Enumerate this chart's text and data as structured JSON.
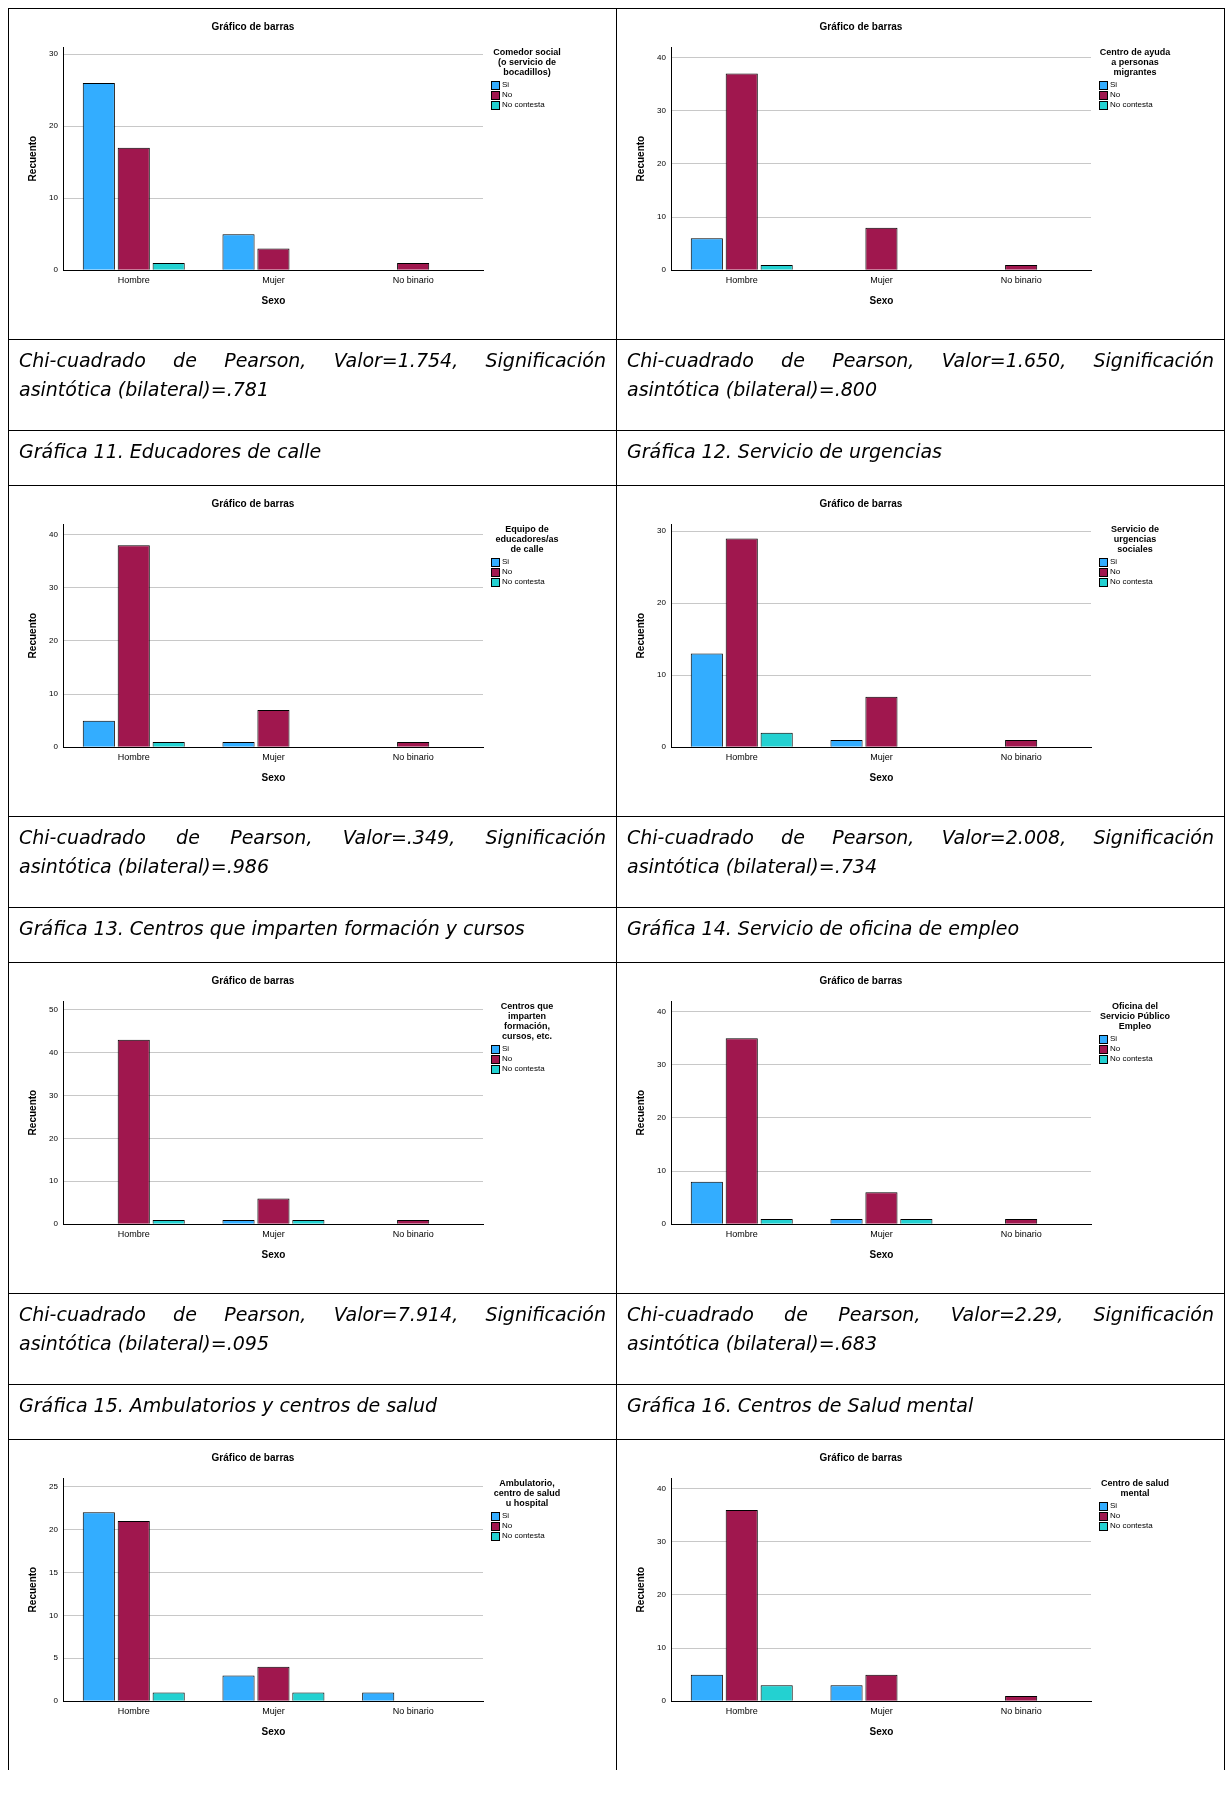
{
  "chart_data": [
    {
      "type": "bar",
      "title": "Gráfico de barras",
      "xlabel": "Sexo",
      "ylabel": "Recuento",
      "legend_title": "Comedor social (o servicio de bocadillos)",
      "legend": "top right",
      "grid": "y",
      "categories": [
        "Hombre",
        "Mujer",
        "No binario"
      ],
      "ylim": [
        0,
        31
      ],
      "yticks": [
        0,
        10,
        20,
        30
      ],
      "series": [
        {
          "name": "Si",
          "color": "#33adff",
          "values": [
            26,
            5,
            null
          ]
        },
        {
          "name": "No",
          "color": "#a0174e",
          "values": [
            17,
            3,
            1
          ]
        },
        {
          "name": "No contesta",
          "color": "#23d1d1",
          "values": [
            1,
            null,
            null
          ]
        }
      ],
      "annotations": [
        "Chi-cuadrado de Pearson, Valor=1.754, Significación asintótica (bilateral)=.781"
      ]
    },
    {
      "type": "bar",
      "title": "Gráfico de barras",
      "xlabel": "Sexo",
      "ylabel": "Recuento",
      "legend_title": "Centro de ayuda a personas migrantes",
      "legend": "top right",
      "grid": "y",
      "categories": [
        "Hombre",
        "Mujer",
        "No binario"
      ],
      "ylim": [
        0,
        42
      ],
      "yticks": [
        0,
        10,
        20,
        30,
        40
      ],
      "series": [
        {
          "name": "Si",
          "color": "#33adff",
          "values": [
            6,
            null,
            null
          ]
        },
        {
          "name": "No",
          "color": "#a0174e",
          "values": [
            37,
            8,
            1
          ]
        },
        {
          "name": "No contesta",
          "color": "#23d1d1",
          "values": [
            1,
            null,
            null
          ]
        }
      ],
      "annotations": [
        "Chi-cuadrado de Pearson, Valor=1.650, Significación asintótica (bilateral)=.800"
      ]
    },
    {
      "type": "bar",
      "title": "Gráfico de barras",
      "xlabel": "Sexo",
      "ylabel": "Recuento",
      "legend_title": "Equipo de educadores/as de calle",
      "legend": "top right",
      "grid": "y",
      "categories": [
        "Hombre",
        "Mujer",
        "No binario"
      ],
      "ylim": [
        0,
        42
      ],
      "yticks": [
        0,
        10,
        20,
        30,
        40
      ],
      "series": [
        {
          "name": "Si",
          "color": "#33adff",
          "values": [
            5,
            1,
            null
          ]
        },
        {
          "name": "No",
          "color": "#a0174e",
          "values": [
            38,
            7,
            1
          ]
        },
        {
          "name": "No contesta",
          "color": "#23d1d1",
          "values": [
            1,
            null,
            null
          ]
        }
      ],
      "annotations": [
        "Gráfica 11. Educadores de calle",
        "Chi-cuadrado de Pearson, Valor=.349, Significación asintótica (bilateral)=.986"
      ]
    },
    {
      "type": "bar",
      "title": "Gráfico de barras",
      "xlabel": "Sexo",
      "ylabel": "Recuento",
      "legend_title": "Servicio de urgencias sociales",
      "legend": "top right",
      "grid": "y",
      "categories": [
        "Hombre",
        "Mujer",
        "No binario"
      ],
      "ylim": [
        0,
        31
      ],
      "yticks": [
        0,
        10,
        20,
        30
      ],
      "series": [
        {
          "name": "Si",
          "color": "#33adff",
          "values": [
            13,
            1,
            null
          ]
        },
        {
          "name": "No",
          "color": "#a0174e",
          "values": [
            29,
            7,
            1
          ]
        },
        {
          "name": "No contesta",
          "color": "#23d1d1",
          "values": [
            2,
            null,
            null
          ]
        }
      ],
      "annotations": [
        "Gráfica 12. Servicio de urgencias",
        "Chi-cuadrado de Pearson, Valor=2.008, Significación asintótica (bilateral)=.734"
      ]
    },
    {
      "type": "bar",
      "title": "Gráfico de barras",
      "xlabel": "Sexo",
      "ylabel": "Recuento",
      "legend_title": "Centros que imparten formación, cursos, etc.",
      "legend": "top right",
      "grid": "y",
      "categories": [
        "Hombre",
        "Mujer",
        "No binario"
      ],
      "ylim": [
        0,
        52
      ],
      "yticks": [
        0,
        10,
        20,
        30,
        40,
        50
      ],
      "series": [
        {
          "name": "Si",
          "color": "#33adff",
          "values": [
            null,
            1,
            null
          ]
        },
        {
          "name": "No",
          "color": "#a0174e",
          "values": [
            43,
            6,
            1
          ]
        },
        {
          "name": "No contesta",
          "color": "#23d1d1",
          "values": [
            1,
            1,
            null
          ]
        }
      ],
      "annotations": [
        "Gráfica 13. Centros que imparten formación y cursos",
        "Chi-cuadrado de Pearson, Valor=7.914, Significación asintótica (bilateral)=.095"
      ]
    },
    {
      "type": "bar",
      "title": "Gráfico de barras",
      "xlabel": "Sexo",
      "ylabel": "Recuento",
      "legend_title": "Oficina del Servicio Público Empleo",
      "legend": "top right",
      "grid": "y",
      "categories": [
        "Hombre",
        "Mujer",
        "No binario"
      ],
      "ylim": [
        0,
        42
      ],
      "yticks": [
        0,
        10,
        20,
        30,
        40
      ],
      "series": [
        {
          "name": "Si",
          "color": "#33adff",
          "values": [
            8,
            1,
            null
          ]
        },
        {
          "name": "No",
          "color": "#a0174e",
          "values": [
            35,
            6,
            1
          ]
        },
        {
          "name": "No contesta",
          "color": "#23d1d1",
          "values": [
            1,
            1,
            null
          ]
        }
      ],
      "annotations": [
        "Gráfica 14. Servicio de oficina de empleo",
        "Chi-cuadrado de Pearson, Valor=2.29, Significación asintótica (bilateral)=.683"
      ]
    },
    {
      "type": "bar",
      "title": "Gráfico de barras",
      "xlabel": "Sexo",
      "ylabel": "Recuento",
      "legend_title": "Ambulatorio, centro de salud u hospital",
      "legend": "top right",
      "grid": "y",
      "categories": [
        "Hombre",
        "Mujer",
        "No binario"
      ],
      "ylim": [
        0,
        26
      ],
      "yticks": [
        0,
        5,
        10,
        15,
        20,
        25
      ],
      "series": [
        {
          "name": "Si",
          "color": "#33adff",
          "values": [
            22,
            3,
            1
          ]
        },
        {
          "name": "No",
          "color": "#a0174e",
          "values": [
            21,
            4,
            null
          ]
        },
        {
          "name": "No contesta",
          "color": "#23d1d1",
          "values": [
            1,
            1,
            null
          ]
        }
      ],
      "annotations": [
        "Gráfica 15. Ambulatorios y centros de salud"
      ]
    },
    {
      "type": "bar",
      "title": "Gráfico de barras",
      "xlabel": "Sexo",
      "ylabel": "Recuento",
      "legend_title": "Centro de salud mental",
      "legend": "top right",
      "grid": "y",
      "categories": [
        "Hombre",
        "Mujer",
        "No binario"
      ],
      "ylim": [
        0,
        42
      ],
      "yticks": [
        0,
        10,
        20,
        30,
        40
      ],
      "series": [
        {
          "name": "Si",
          "color": "#33adff",
          "values": [
            5,
            3,
            null
          ]
        },
        {
          "name": "No",
          "color": "#a0174e",
          "values": [
            36,
            5,
            1
          ]
        },
        {
          "name": "No contesta",
          "color": "#23d1d1",
          "values": [
            3,
            null,
            null
          ]
        }
      ],
      "annotations": [
        "Gráfica 16. Centros de Salud mental"
      ]
    }
  ]
}
